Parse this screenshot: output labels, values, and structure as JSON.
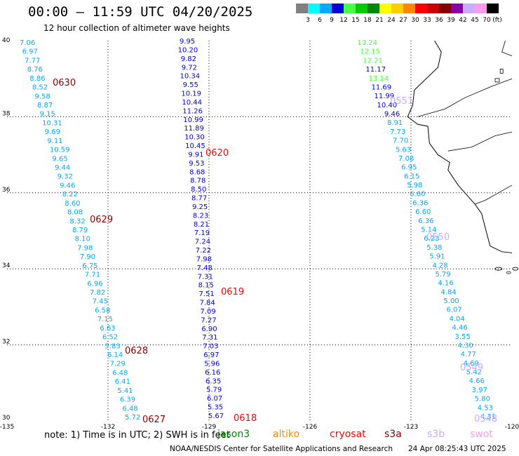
{
  "header": {
    "title": "00:00 – 11:59 UTC 04/20/2025",
    "subtitle": "12 hour collection of altimeter wave heights"
  },
  "colorbar": {
    "labels": [
      "3",
      "6",
      "9",
      "12",
      "15",
      "18",
      "21",
      "24",
      "27",
      "30",
      "33",
      "36",
      "39",
      "42",
      "45",
      "70"
    ],
    "unit": "(ft)",
    "colors": [
      "#808080",
      "#00ffff",
      "#00aaff",
      "#0000dd",
      "#44ff44",
      "#00cc00",
      "#008800",
      "#ffff00",
      "#ffcc00",
      "#ff8800",
      "#ff0000",
      "#cc0000",
      "#880000",
      "#8800aa",
      "#ccaaff",
      "#ff99ee",
      "#000000"
    ]
  },
  "map": {
    "lat_labels": [
      "40",
      "38",
      "36",
      "34",
      "32",
      "30"
    ],
    "lon_labels": [
      "-135",
      "-132",
      "-129",
      "-126",
      "-123",
      "-120"
    ],
    "lat_range": [
      30,
      40
    ],
    "lon_range": [
      -135,
      -120
    ],
    "grid": "dotted"
  },
  "tracks": [
    {
      "color": "#00aaff",
      "values": [
        "7.06",
        "6.97",
        "7.77",
        "8.76",
        "8.86",
        "8.52",
        "9.58",
        "8.87",
        "9.15",
        "10.31",
        "9.69",
        "9.11",
        "10.59",
        "9.65",
        "9.44",
        "9.32",
        "9.46",
        "8.22",
        "8.60",
        "8.08",
        "8.32",
        "8.79",
        "8.10",
        "7.98",
        "7.90",
        "6.75",
        "7.71",
        "6.96",
        "7.82",
        "7.45",
        "6.58",
        "7.15",
        "6.63",
        "6.52",
        "5.83",
        "6.14",
        "7.29",
        "6.48",
        "6.41",
        "5.41",
        "6.39",
        "6.48",
        "5.72"
      ]
    },
    {
      "color": "#0000dd",
      "values": [
        "9.95",
        "10.20",
        "9.82",
        "9.72",
        "10.34",
        "9.55",
        "10.19",
        "10.44",
        "11.26",
        "10.99",
        "11.89",
        "10.30",
        "10.45",
        "9.91",
        "9.53",
        "8.68",
        "8.78",
        "8.50",
        "8.77",
        "9.25",
        "8.23",
        "8.21",
        "7.19",
        "7.24",
        "7.22",
        "7.98",
        "7.48",
        "7.31",
        "8.15",
        "7.51",
        "7.84",
        "7.09",
        "7.27",
        "6.90",
        "7.31",
        "7.03",
        "6.97",
        "5.96",
        "6.16",
        "6.35",
        "5.79",
        "6.07",
        "5.35",
        "5.67"
      ]
    },
    {
      "color": "#00aaff",
      "values": [
        "13.24",
        "12.15",
        "12.21",
        "11.17",
        "13.14",
        "11.69",
        "11.99",
        "10.40",
        "9.46",
        "8.91",
        "7.73",
        "7.70",
        "5.63",
        "7.08",
        "6.95",
        "6.15",
        "5.98",
        "6.60",
        "6.36",
        "6.60",
        "6.36",
        "5.14",
        "6.23",
        "5.38",
        "5.91",
        "4.28",
        "5.79",
        "4.16",
        "4.84",
        "5.00",
        "6.07",
        "4.04",
        "4.46",
        "3.55",
        "4.30",
        "4.77",
        "4.69",
        "5.42",
        "4.66",
        "3.97",
        "5.80",
        "4.53",
        "4.31"
      ]
    }
  ],
  "pass_labels": [
    {
      "text": "0630",
      "color": "#880000"
    },
    {
      "text": "0629",
      "color": "#880000"
    },
    {
      "text": "0628",
      "color": "#880000"
    },
    {
      "text": "0627",
      "color": "#880000"
    },
    {
      "text": "0620",
      "color": "#ff0000"
    },
    {
      "text": "0619",
      "color": "#ff0000"
    },
    {
      "text": "0618",
      "color": "#ff0000"
    },
    {
      "text": "0551",
      "color": "#ccaaff"
    },
    {
      "text": "0550",
      "color": "#ccaaff"
    },
    {
      "text": "0549",
      "color": "#ccaaff"
    },
    {
      "text": "0548",
      "color": "#ccaaff"
    }
  ],
  "footer": {
    "note": "note:  1) Time is in UTC;  2) SWH is in feet",
    "satellites": [
      {
        "name": "jason3",
        "color": "#008800"
      },
      {
        "name": "altiko",
        "color": "#ff8800"
      },
      {
        "name": "cryosat",
        "color": "#ff0000"
      },
      {
        "name": "s3a",
        "color": "#880000"
      },
      {
        "name": "s3b",
        "color": "#ccaaff"
      },
      {
        "name": "swot",
        "color": "#ff99ee"
      }
    ],
    "credit": "NOAA/NESDIS Center for Satellite Applications and Research",
    "timestamp": "24 Apr 08:25:43 UTC 2025"
  }
}
